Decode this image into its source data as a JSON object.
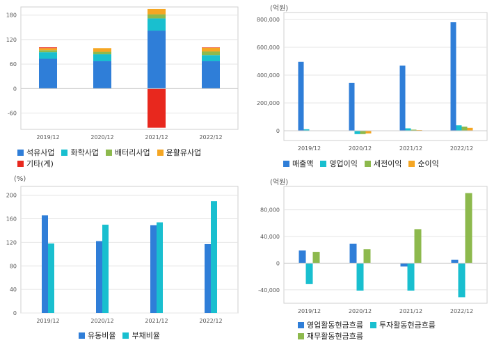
{
  "chart_data": [
    {
      "type": "bar",
      "stacked": true,
      "unit": "",
      "categories": [
        "2019/12",
        "2020/12",
        "2021/12",
        "2022/12"
      ],
      "series": [
        {
          "name": "석유사업",
          "color": "#2f7ed8",
          "values": [
            73,
            67,
            142,
            67
          ]
        },
        {
          "name": "화학사업",
          "color": "#19bfcf",
          "values": [
            16,
            17,
            30,
            15
          ]
        },
        {
          "name": "배터리사업",
          "color": "#8db94d",
          "values": [
            5,
            6,
            10,
            9
          ]
        },
        {
          "name": "윤활유사업",
          "color": "#f5a623",
          "values": [
            5,
            9,
            13,
            9
          ]
        },
        {
          "name": "기타(계)",
          "color": "#e8281e",
          "values": [
            2,
            0,
            -96,
            1
          ]
        }
      ],
      "ylim": [
        -100,
        200
      ],
      "yticks": [
        -60,
        0,
        60,
        120,
        180
      ],
      "legend_rows": [
        [
          0,
          1,
          2,
          3
        ],
        [
          4
        ]
      ],
      "grid": true,
      "legend_position": "bottom"
    },
    {
      "type": "bar",
      "unit": "(억원)",
      "categories": [
        "2019/12",
        "2020/12",
        "2021/12",
        "2022/12"
      ],
      "series": [
        {
          "name": "매출액",
          "color": "#2f7ed8",
          "values": [
            496000,
            345000,
            468000,
            780000
          ]
        },
        {
          "name": "영업이익",
          "color": "#19bfcf",
          "values": [
            11000,
            -24000,
            17500,
            39000
          ]
        },
        {
          "name": "세전이익",
          "color": "#8db94d",
          "values": [
            2000,
            -24000,
            8000,
            30000
          ]
        },
        {
          "name": "순이익",
          "color": "#f5a623",
          "values": [
            -1000,
            -19000,
            5000,
            21000
          ]
        }
      ],
      "ylim": [
        -70000,
        850000
      ],
      "yticks": [
        0,
        200000,
        400000,
        600000,
        800000
      ],
      "tick_labels": [
        "0",
        "200,000",
        "400,000",
        "600,000",
        "800,000"
      ],
      "legend_rows": [
        [
          0,
          1,
          2,
          3
        ]
      ],
      "grid": true,
      "legend_position": "bottom"
    },
    {
      "type": "bar",
      "unit": "(%)",
      "categories": [
        "2019/12",
        "2020/12",
        "2021/12",
        "2022/12"
      ],
      "series": [
        {
          "name": "유동비율",
          "color": "#2f7ed8",
          "values": [
            166,
            122,
            149,
            117
          ]
        },
        {
          "name": "부채비율",
          "color": "#19bfcf",
          "values": [
            118,
            150,
            154,
            190
          ]
        }
      ],
      "ylim": [
        0,
        215
      ],
      "yticks": [
        0,
        40,
        80,
        120,
        160,
        200
      ],
      "legend_rows": [
        [
          0,
          1
        ]
      ],
      "grid": true,
      "legend_position": "bottom"
    },
    {
      "type": "bar",
      "unit": "(억원)",
      "categories": [
        "2019/12",
        "2020/12",
        "2021/12",
        "2022/12"
      ],
      "series": [
        {
          "name": "영업활동현금흐름",
          "color": "#2f7ed8",
          "values": [
            19000,
            29000,
            -5000,
            5000
          ]
        },
        {
          "name": "투자활동현금흐름",
          "color": "#19bfcf",
          "values": [
            -31000,
            -41000,
            -41000,
            -51000
          ]
        },
        {
          "name": "재무활동현금흐름",
          "color": "#8db94d",
          "values": [
            17000,
            21000,
            51000,
            105000
          ]
        }
      ],
      "ylim": [
        -60000,
        115000
      ],
      "yticks": [
        -40000,
        0,
        40000,
        80000
      ],
      "tick_labels": [
        "-40,000",
        "0",
        "40,000",
        "80,000"
      ],
      "legend_rows": [
        [
          0,
          1
        ],
        [
          2
        ]
      ],
      "grid": true,
      "legend_position": "bottom"
    }
  ]
}
